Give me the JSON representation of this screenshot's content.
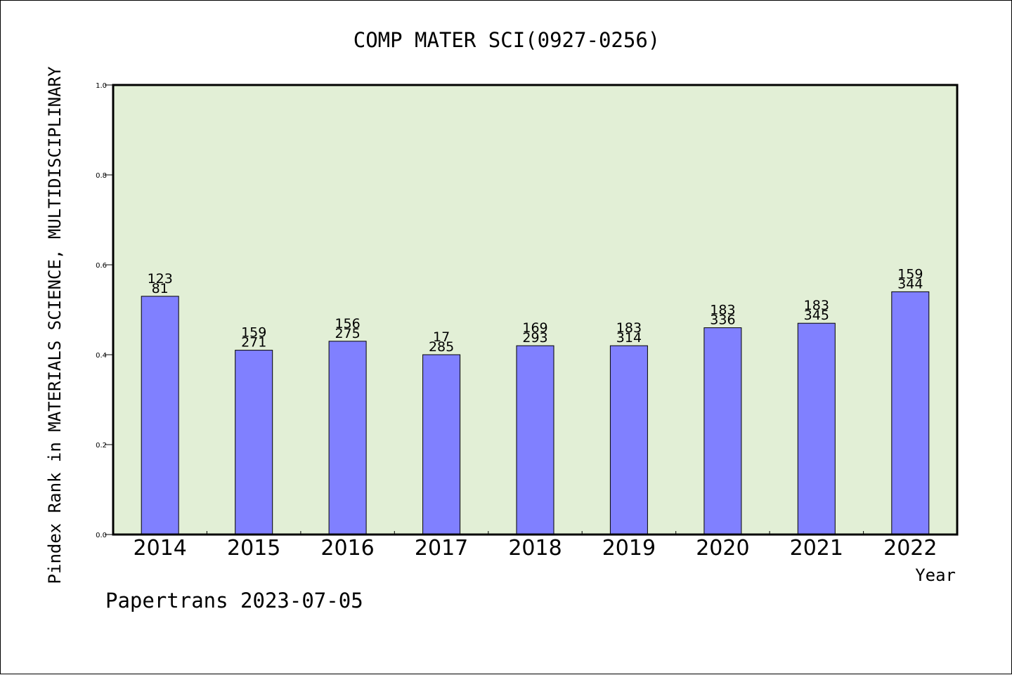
{
  "chart_data": {
    "type": "bar",
    "title": "COMP MATER SCI(0927-0256)",
    "xlabel": "Year",
    "ylabel": "Pindex Rank in MATERIALS SCIENCE, MULTIDISCIPLINARY",
    "categories": [
      "2014",
      "2015",
      "2016",
      "2017",
      "2018",
      "2019",
      "2020",
      "2021",
      "2022"
    ],
    "values": [
      0.53,
      0.41,
      0.43,
      0.4,
      0.42,
      0.42,
      0.46,
      0.47,
      0.54
    ],
    "label_top": [
      "123",
      "159",
      "156",
      "17",
      "169",
      "183",
      "183",
      "183",
      "159"
    ],
    "label_bottom": [
      "81",
      "271",
      "275",
      "285",
      "293",
      "314",
      "336",
      "345",
      "344"
    ],
    "ylim": [
      0,
      1.0
    ],
    "yticks": [
      "0.0",
      "0.2",
      "0.4",
      "0.6",
      "0.8",
      "1.0"
    ],
    "grid": false,
    "colors": {
      "bar": "#8080ff",
      "plot_bg": "#e2efd6",
      "axis": "#000000"
    }
  },
  "footer": {
    "credit": "Papertrans 2023-07-05"
  }
}
